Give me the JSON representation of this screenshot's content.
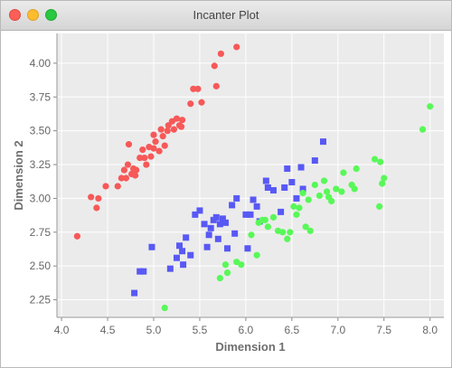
{
  "window": {
    "title": "Incanter Plot"
  },
  "colors": {
    "series_red": "#f75858",
    "series_blue": "#5858f5",
    "series_green": "#58f858",
    "plot_background": "#ebebeb",
    "grid": "#ffffff"
  },
  "chart_data": {
    "type": "scatter",
    "title": "",
    "xlabel": "Dimension 1",
    "ylabel": "Dimension 2",
    "xlim": [
      3.95,
      8.15
    ],
    "ylim": [
      2.12,
      4.22
    ],
    "xticks": [
      "4.0",
      "4.5",
      "5.0",
      "5.5",
      "6.0",
      "6.5",
      "7.0",
      "7.5",
      "8.0"
    ],
    "yticks": [
      "2.25",
      "2.50",
      "2.75",
      "3.00",
      "3.25",
      "3.50",
      "3.75",
      "4.00"
    ],
    "grid": true,
    "legend": "none",
    "series": [
      {
        "marker": "circle",
        "color": "#f75858",
        "points": [
          [
            4.17,
            2.72
          ],
          [
            4.32,
            3.01
          ],
          [
            4.38,
            2.93
          ],
          [
            4.4,
            3.0
          ],
          [
            4.48,
            3.09
          ],
          [
            4.61,
            3.09
          ],
          [
            4.65,
            3.15
          ],
          [
            4.68,
            3.21
          ],
          [
            4.7,
            3.15
          ],
          [
            4.72,
            3.25
          ],
          [
            4.73,
            3.4
          ],
          [
            4.76,
            3.18
          ],
          [
            4.78,
            3.22
          ],
          [
            4.8,
            3.17
          ],
          [
            4.81,
            3.21
          ],
          [
            4.85,
            3.3
          ],
          [
            4.88,
            3.36
          ],
          [
            4.9,
            3.3
          ],
          [
            4.92,
            3.25
          ],
          [
            4.95,
            3.38
          ],
          [
            4.97,
            3.31
          ],
          [
            5.0,
            3.37
          ],
          [
            5.0,
            3.47
          ],
          [
            5.02,
            3.42
          ],
          [
            5.06,
            3.35
          ],
          [
            5.08,
            3.51
          ],
          [
            5.1,
            3.46
          ],
          [
            5.12,
            3.39
          ],
          [
            5.15,
            3.5
          ],
          [
            5.16,
            3.54
          ],
          [
            5.2,
            3.57
          ],
          [
            5.22,
            3.51
          ],
          [
            5.25,
            3.59
          ],
          [
            5.28,
            3.54
          ],
          [
            5.3,
            3.53
          ],
          [
            5.31,
            3.58
          ],
          [
            5.4,
            3.7
          ],
          [
            5.43,
            3.81
          ],
          [
            5.48,
            3.81
          ],
          [
            5.52,
            3.71
          ],
          [
            5.66,
            3.98
          ],
          [
            5.68,
            3.83
          ],
          [
            5.73,
            4.07
          ],
          [
            5.9,
            4.12
          ]
        ]
      },
      {
        "marker": "square",
        "color": "#5858f5",
        "points": [
          [
            4.79,
            2.3
          ],
          [
            4.85,
            2.46
          ],
          [
            4.89,
            2.46
          ],
          [
            4.98,
            2.64
          ],
          [
            5.18,
            2.48
          ],
          [
            5.25,
            2.56
          ],
          [
            5.28,
            2.65
          ],
          [
            5.31,
            2.61
          ],
          [
            5.32,
            2.51
          ],
          [
            5.35,
            2.71
          ],
          [
            5.4,
            2.58
          ],
          [
            5.45,
            2.88
          ],
          [
            5.5,
            2.91
          ],
          [
            5.55,
            2.81
          ],
          [
            5.58,
            2.64
          ],
          [
            5.6,
            2.73
          ],
          [
            5.62,
            2.78
          ],
          [
            5.65,
            2.84
          ],
          [
            5.68,
            2.86
          ],
          [
            5.7,
            2.7
          ],
          [
            5.72,
            2.81
          ],
          [
            5.75,
            2.85
          ],
          [
            5.78,
            2.82
          ],
          [
            5.8,
            2.63
          ],
          [
            5.85,
            2.95
          ],
          [
            5.88,
            2.74
          ],
          [
            5.9,
            3.0
          ],
          [
            6.0,
            2.88
          ],
          [
            6.02,
            2.63
          ],
          [
            6.05,
            2.88
          ],
          [
            6.08,
            2.99
          ],
          [
            6.12,
            2.94
          ],
          [
            6.15,
            2.83
          ],
          [
            6.22,
            3.13
          ],
          [
            6.24,
            3.08
          ],
          [
            6.3,
            3.06
          ],
          [
            6.38,
            2.9
          ],
          [
            6.42,
            3.08
          ],
          [
            6.45,
            3.22
          ],
          [
            6.5,
            3.12
          ],
          [
            6.55,
            3.0
          ],
          [
            6.6,
            3.23
          ],
          [
            6.62,
            3.07
          ],
          [
            6.75,
            3.28
          ],
          [
            6.84,
            3.42
          ]
        ]
      },
      {
        "marker": "circle",
        "color": "#58f858",
        "points": [
          [
            5.12,
            2.19
          ],
          [
            5.72,
            2.41
          ],
          [
            5.78,
            2.51
          ],
          [
            5.8,
            2.45
          ],
          [
            5.9,
            2.53
          ],
          [
            5.95,
            2.51
          ],
          [
            6.06,
            2.73
          ],
          [
            6.12,
            2.58
          ],
          [
            6.14,
            2.82
          ],
          [
            6.18,
            2.84
          ],
          [
            6.21,
            2.84
          ],
          [
            6.24,
            2.79
          ],
          [
            6.3,
            2.86
          ],
          [
            6.35,
            2.76
          ],
          [
            6.4,
            2.75
          ],
          [
            6.45,
            2.7
          ],
          [
            6.48,
            2.75
          ],
          [
            6.52,
            2.94
          ],
          [
            6.55,
            2.88
          ],
          [
            6.58,
            2.93
          ],
          [
            6.62,
            3.04
          ],
          [
            6.65,
            2.79
          ],
          [
            6.68,
            2.99
          ],
          [
            6.7,
            2.76
          ],
          [
            6.75,
            3.1
          ],
          [
            6.8,
            3.02
          ],
          [
            6.85,
            3.13
          ],
          [
            6.88,
            3.05
          ],
          [
            6.9,
            3.01
          ],
          [
            6.93,
            2.98
          ],
          [
            6.98,
            3.07
          ],
          [
            7.04,
            3.05
          ],
          [
            7.06,
            3.19
          ],
          [
            7.15,
            3.1
          ],
          [
            7.18,
            3.07
          ],
          [
            7.2,
            3.22
          ],
          [
            7.4,
            3.29
          ],
          [
            7.45,
            2.94
          ],
          [
            7.46,
            3.27
          ],
          [
            7.48,
            3.11
          ],
          [
            7.5,
            3.15
          ],
          [
            7.92,
            3.51
          ],
          [
            8.0,
            3.68
          ]
        ]
      }
    ]
  }
}
